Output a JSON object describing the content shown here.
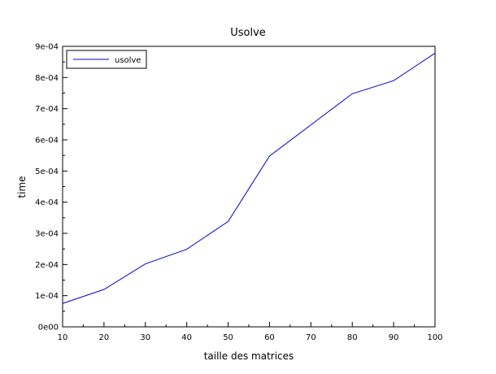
{
  "chart_data": {
    "type": "line",
    "title": "Usolve",
    "xlabel": "taille des matrices",
    "ylabel": "time",
    "x": [
      10,
      20,
      30,
      40,
      50,
      60,
      70,
      80,
      90,
      100
    ],
    "series": [
      {
        "name": "usolve",
        "color": "#0000cc",
        "values": [
          7.5e-05,
          0.00012,
          0.000202,
          0.000249,
          0.000338,
          0.000548,
          0.000648,
          0.000748,
          0.00079,
          0.000878
        ]
      }
    ],
    "xlim": [
      10,
      100
    ],
    "ylim": [
      0,
      0.0009
    ],
    "xticks": [
      10,
      20,
      30,
      40,
      50,
      60,
      70,
      80,
      90,
      100
    ],
    "xtick_labels": [
      "10",
      "20",
      "30",
      "40",
      "50",
      "60",
      "70",
      "80",
      "90",
      "100"
    ],
    "yticks": [
      0,
      0.0001,
      0.0002,
      0.0003,
      0.0004,
      0.0005,
      0.0006,
      0.0007,
      0.0008,
      0.0009
    ],
    "ytick_labels": [
      "0e00",
      "1e-04",
      "2e-04",
      "3e-04",
      "4e-04",
      "5e-04",
      "6e-04",
      "7e-04",
      "8e-04",
      "9e-04"
    ],
    "grid": false,
    "legend_position": "top-left"
  }
}
